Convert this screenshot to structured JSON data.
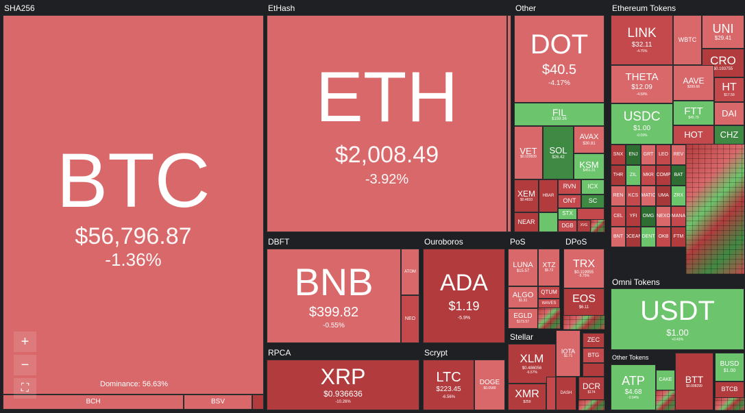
{
  "sections": {
    "sha256": "SHA256",
    "ethash": "EtHash",
    "other": "Other",
    "ethereum_tokens": "Ethereum Tokens",
    "dbft": "DBFT",
    "ouroboros": "Ouroboros",
    "pos": "PoS",
    "dpos": "DPoS",
    "omni_tokens": "Omni Tokens",
    "rpca": "RPCA",
    "scrypt": "Scrypt",
    "stellar": "Stellar",
    "other_tokens": "Other Tokens"
  },
  "btc": {
    "symbol": "BTC",
    "price": "$56,796.87",
    "change": "-1.36%",
    "dominance": "Dominance: 56.63%"
  },
  "bch": {
    "symbol": "BCH"
  },
  "bsv": {
    "symbol": "BSV"
  },
  "eth": {
    "symbol": "ETH",
    "price": "$2,008.49",
    "change": "-3.92%"
  },
  "dot": {
    "symbol": "DOT",
    "price": "$40.5",
    "change": "-4.17%"
  },
  "fil": {
    "symbol": "FIL",
    "price": "$159.36"
  },
  "vet": {
    "symbol": "VET",
    "price": "$0.103839"
  },
  "sol": {
    "symbol": "SOL",
    "price": "$26.42"
  },
  "avax": {
    "symbol": "AVAX",
    "price": "$30.81"
  },
  "ksm": {
    "symbol": "KSM",
    "price": "$451.31"
  },
  "xem": {
    "symbol": "XEM",
    "price": "$0.4833"
  },
  "hbar": {
    "symbol": "HBAR"
  },
  "rvn": {
    "symbol": "RVN"
  },
  "icx": {
    "symbol": "ICX"
  },
  "ont": {
    "symbol": "ONT"
  },
  "sc": {
    "symbol": "SC"
  },
  "near": {
    "symbol": "NEAR"
  },
  "stx": {
    "symbol": "STX"
  },
  "dgb": {
    "symbol": "DGB"
  },
  "xvg": {
    "symbol": "XVG"
  },
  "link": {
    "symbol": "LINK",
    "price": "$32.11",
    "change": "-4.75%"
  },
  "wbtc": {
    "symbol": "WBTC"
  },
  "uni": {
    "symbol": "UNI",
    "price": "$29.41"
  },
  "cro": {
    "symbol": "CRO",
    "price": "$0.193755"
  },
  "theta": {
    "symbol": "THETA",
    "price": "$12.09",
    "change": "-4.58%"
  },
  "aave": {
    "symbol": "AAVE",
    "price": "$399.66"
  },
  "ht": {
    "symbol": "HT",
    "price": "$17.59"
  },
  "usdc": {
    "symbol": "USDC",
    "price": "$1.00",
    "change": "-0.09%"
  },
  "ftt": {
    "symbol": "FTT",
    "price": "$45.79"
  },
  "dai": {
    "symbol": "DAI"
  },
  "hot": {
    "symbol": "HOT"
  },
  "chz": {
    "symbol": "CHZ"
  },
  "small_eth": [
    "SNX",
    "ENJ",
    "GRT",
    "LEO",
    "REV",
    "THR",
    "ZIL",
    "MKR",
    "COMP",
    "BAT",
    "REN",
    "KCS",
    "MATIC",
    "UMA",
    "ZRX",
    "CEL",
    "YFI",
    "OMG",
    "NEXO",
    "MANA",
    "BNT",
    "OCEAN",
    "DENT",
    "OKB",
    "FTM"
  ],
  "bnb": {
    "symbol": "BNB",
    "price": "$399.82",
    "change": "-0.55%"
  },
  "atom": {
    "symbol": "ATOM"
  },
  "neo": {
    "symbol": "NEO"
  },
  "ada": {
    "symbol": "ADA",
    "price": "$1.19",
    "change": "-5.9%"
  },
  "luna": {
    "symbol": "LUNA",
    "price": "$15.57"
  },
  "xtz": {
    "symbol": "XTZ",
    "price": "$5.72"
  },
  "algo": {
    "symbol": "ALGO",
    "price": "$1.31"
  },
  "qtum": {
    "symbol": "QTUM"
  },
  "waves": {
    "symbol": "WAVES"
  },
  "egld": {
    "symbol": "EGLD",
    "price": "$173.57"
  },
  "trx": {
    "symbol": "TRX",
    "price": "$0.119955",
    "change": "-5.75%"
  },
  "eos": {
    "symbol": "EOS",
    "price": "$6.11"
  },
  "usdt": {
    "symbol": "USDT",
    "price": "$1.00",
    "change": "+0.43%"
  },
  "xrp": {
    "symbol": "XRP",
    "price": "$0.936636",
    "change": "-10.26%"
  },
  "ltc": {
    "symbol": "LTC",
    "price": "$223.45",
    "change": "-6.56%"
  },
  "doge": {
    "symbol": "DOGE",
    "price": "$0.0589"
  },
  "xlm": {
    "symbol": "XLM",
    "price": "$0.486056",
    "change": "-6.57%"
  },
  "iota": {
    "symbol": "IOTA",
    "price": "$1.71"
  },
  "zec": {
    "symbol": "ZEC"
  },
  "btg": {
    "symbol": "BTG"
  },
  "xmr": {
    "symbol": "XMR",
    "price": "$259"
  },
  "dash": {
    "symbol": "DASH"
  },
  "dcr": {
    "symbol": "DCR",
    "price": "$174"
  },
  "atp": {
    "symbol": "ATP",
    "price": "$4.68",
    "change": "-0.94%"
  },
  "cake": {
    "symbol": "CAKE"
  },
  "btt": {
    "symbol": "BTT",
    "price": "$0.008299"
  },
  "busd": {
    "symbol": "BUSD",
    "price": "$1.00"
  },
  "btcb": {
    "symbol": "BTCB"
  },
  "controls": {
    "zoom_in": "+",
    "zoom_out": "−",
    "fullscreen": "⛶"
  },
  "colors": {
    "background": "#1e2023",
    "red": "#d9686a",
    "dark_red": "#b23b3d",
    "green": "#6cc46c",
    "dark_green": "#3f8a43"
  }
}
